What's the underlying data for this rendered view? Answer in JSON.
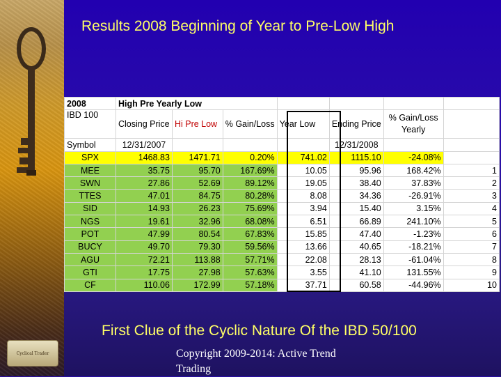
{
  "slide": {
    "title": "Results 2008 Beginning of Year to Pre-Low High",
    "subtitle": "First Clue of the Cyclic Nature Of the IBD 50/100",
    "copyright": "Copyright 2009-2014: Active Trend Trading",
    "logo_text": "Cyclical Trader"
  },
  "table": {
    "row1": [
      "2008",
      "High Pre Yearly Low"
    ],
    "row2_col1": "IBD 100",
    "headers": [
      "Closing Price",
      "Hi Pre Low",
      "% Gain/Loss",
      "Year Low",
      "Ending Price",
      "% Gain/Loss Yearly"
    ],
    "row3": [
      "Symbol",
      "12/31/2007",
      "12/31/2008"
    ],
    "rows": [
      {
        "sym": "SPX",
        "close": "1468.83",
        "hi": "1471.71",
        "gain": "0.20%",
        "low": "741.02",
        "end": "1115.10",
        "yearly": "-24.08%",
        "rank": ""
      },
      {
        "sym": "MEE",
        "close": "35.75",
        "hi": "95.70",
        "gain": "167.69%",
        "low": "10.05",
        "end": "95.96",
        "yearly": "168.42%",
        "rank": "1"
      },
      {
        "sym": "SWN",
        "close": "27.86",
        "hi": "52.69",
        "gain": "89.12%",
        "low": "19.05",
        "end": "38.40",
        "yearly": "37.83%",
        "rank": "2"
      },
      {
        "sym": "TTES",
        "close": "47.01",
        "hi": "84.75",
        "gain": "80.28%",
        "low": "8.08",
        "end": "34.36",
        "yearly": "-26.91%",
        "rank": "3"
      },
      {
        "sym": "SID",
        "close": "14.93",
        "hi": "26.23",
        "gain": "75.69%",
        "low": "3.94",
        "end": "15.40",
        "yearly": "3.15%",
        "rank": "4"
      },
      {
        "sym": "NGS",
        "close": "19.61",
        "hi": "32.96",
        "gain": "68.08%",
        "low": "6.51",
        "end": "66.89",
        "yearly": "241.10%",
        "rank": "5"
      },
      {
        "sym": "POT",
        "close": "47.99",
        "hi": "80.54",
        "gain": "67.83%",
        "low": "15.85",
        "end": "47.40",
        "yearly": "-1.23%",
        "rank": "6"
      },
      {
        "sym": "BUCY",
        "close": "49.70",
        "hi": "79.30",
        "gain": "59.56%",
        "low": "13.66",
        "end": "40.65",
        "yearly": "-18.21%",
        "rank": "7"
      },
      {
        "sym": "AGU",
        "close": "72.21",
        "hi": "113.88",
        "gain": "57.71%",
        "low": "22.08",
        "end": "28.13",
        "yearly": "-61.04%",
        "rank": "8"
      },
      {
        "sym": "GTI",
        "close": "17.75",
        "hi": "27.98",
        "gain": "57.63%",
        "low": "3.55",
        "end": "41.10",
        "yearly": "131.55%",
        "rank": "9"
      },
      {
        "sym": "CF",
        "close": "110.06",
        "hi": "172.99",
        "gain": "57.18%",
        "low": "37.71",
        "end": "60.58",
        "yearly": "-44.96%",
        "rank": "10"
      }
    ]
  },
  "icons": {
    "key": "vintage-key-icon",
    "logo": "cyclical-trader-logo"
  }
}
